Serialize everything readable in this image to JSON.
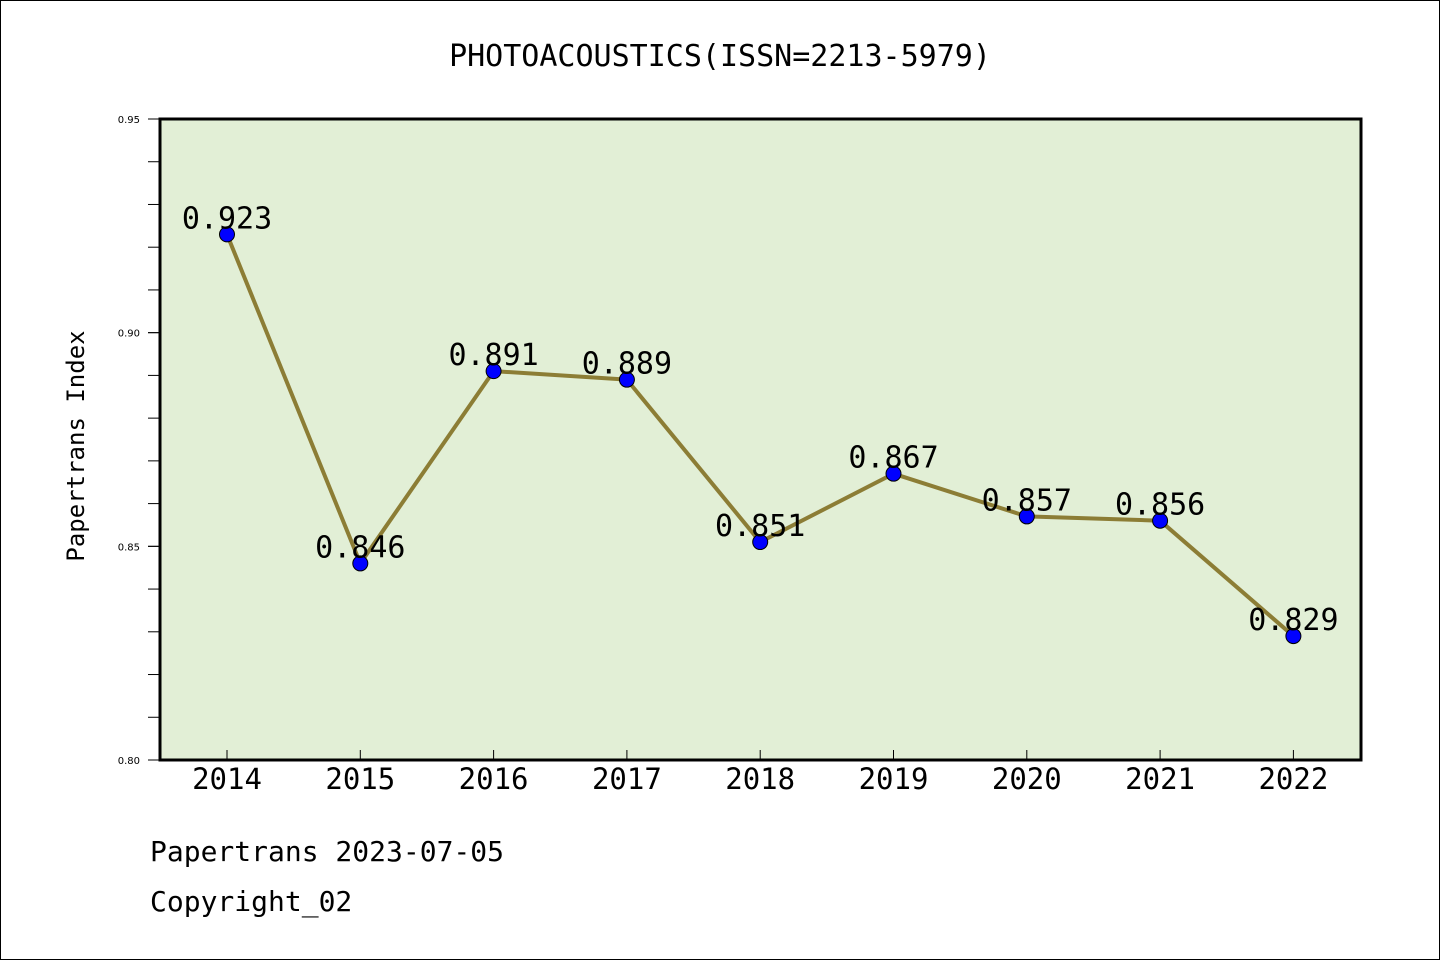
{
  "chart_data": {
    "type": "line",
    "title": "PHOTOACOUSTICS(ISSN=2213-5979)",
    "xlabel": "",
    "ylabel": "Papertrans Index",
    "categories": [
      "2014",
      "2015",
      "2016",
      "2017",
      "2018",
      "2019",
      "2020",
      "2021",
      "2022"
    ],
    "series": [
      {
        "values": [
          0.923,
          0.846,
          0.891,
          0.889,
          0.851,
          0.867,
          0.857,
          0.856,
          0.829
        ]
      }
    ],
    "data_labels": [
      "0.923",
      "0.846",
      "0.891",
      "0.889",
      "0.851",
      "0.867",
      "0.857",
      "0.856",
      "0.829"
    ],
    "ylim": [
      0.8,
      0.95
    ],
    "yticks": [
      "0.80",
      "0.85",
      "0.90",
      "0.95"
    ],
    "grid": false,
    "colors": {
      "plot_background": "#e2efd6",
      "line": "#8c7d35",
      "marker": "#0000ff"
    }
  },
  "footer": {
    "line1": "Papertrans 2023-07-05",
    "line2": "Copyright_02"
  }
}
